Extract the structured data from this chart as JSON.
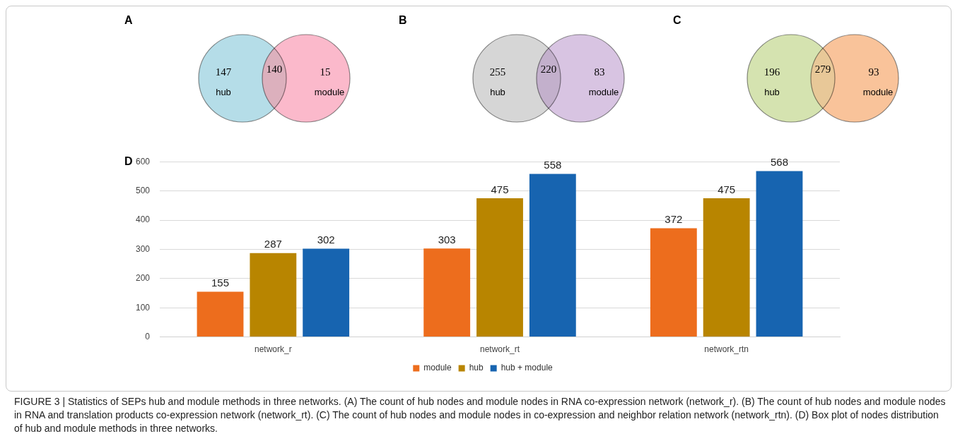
{
  "chart_data": [
    {
      "type": "other",
      "title": "A",
      "categories": [
        "hub",
        null,
        "module"
      ],
      "values": [
        147,
        140,
        15
      ],
      "data_labels": true,
      "colors": [
        "#b5dde8",
        "#dcb0bd",
        "#fbb9cb"
      ]
    },
    {
      "type": "other",
      "title": "B",
      "categories": [
        "hub",
        null,
        "module"
      ],
      "values": [
        255,
        220,
        83
      ],
      "data_labels": true,
      "colors": [
        "#d6d6d6",
        "#c3b0cc",
        "#d8c4e2"
      ]
    },
    {
      "type": "other",
      "title": "C",
      "categories": [
        "hub",
        null,
        "module"
      ],
      "values": [
        196,
        279,
        93
      ],
      "data_labels": true,
      "colors": [
        "#d5e3b0",
        "#e8c898",
        "#f9c39a"
      ]
    },
    {
      "type": "bar",
      "title": "D",
      "categories": [
        "network_r",
        "network_rt",
        "network_rtn"
      ],
      "series": [
        {
          "name": "module",
          "color": "#ed6d1d",
          "values": [
            155,
            303,
            372
          ]
        },
        {
          "name": "hub",
          "color": "#b88500",
          "values": [
            287,
            475,
            475
          ]
        },
        {
          "name": "hub + module",
          "color": "#1764b0",
          "values": [
            302,
            558,
            568
          ]
        }
      ],
      "ylim": [
        0,
        600
      ],
      "yticks": [
        0,
        100,
        200,
        300,
        400,
        500,
        600
      ],
      "grid": "y",
      "legend": "bottom",
      "data_labels": true,
      "annotations": [
        "FIGURE 3 | Statistics of SEPs hub and module methods in three networks. (A) The count of hub nodes and module nodes in RNA co-expression network (network_r). (B) The count of hub nodes and module nodes in RNA and translation products co-expression network (network_rt). (C) The count of hub nodes and module nodes in co-expression and neighbor relation network (network_rtn). (D) Box plot of nodes distribution of hub and module methods in three networks."
      ]
    }
  ]
}
